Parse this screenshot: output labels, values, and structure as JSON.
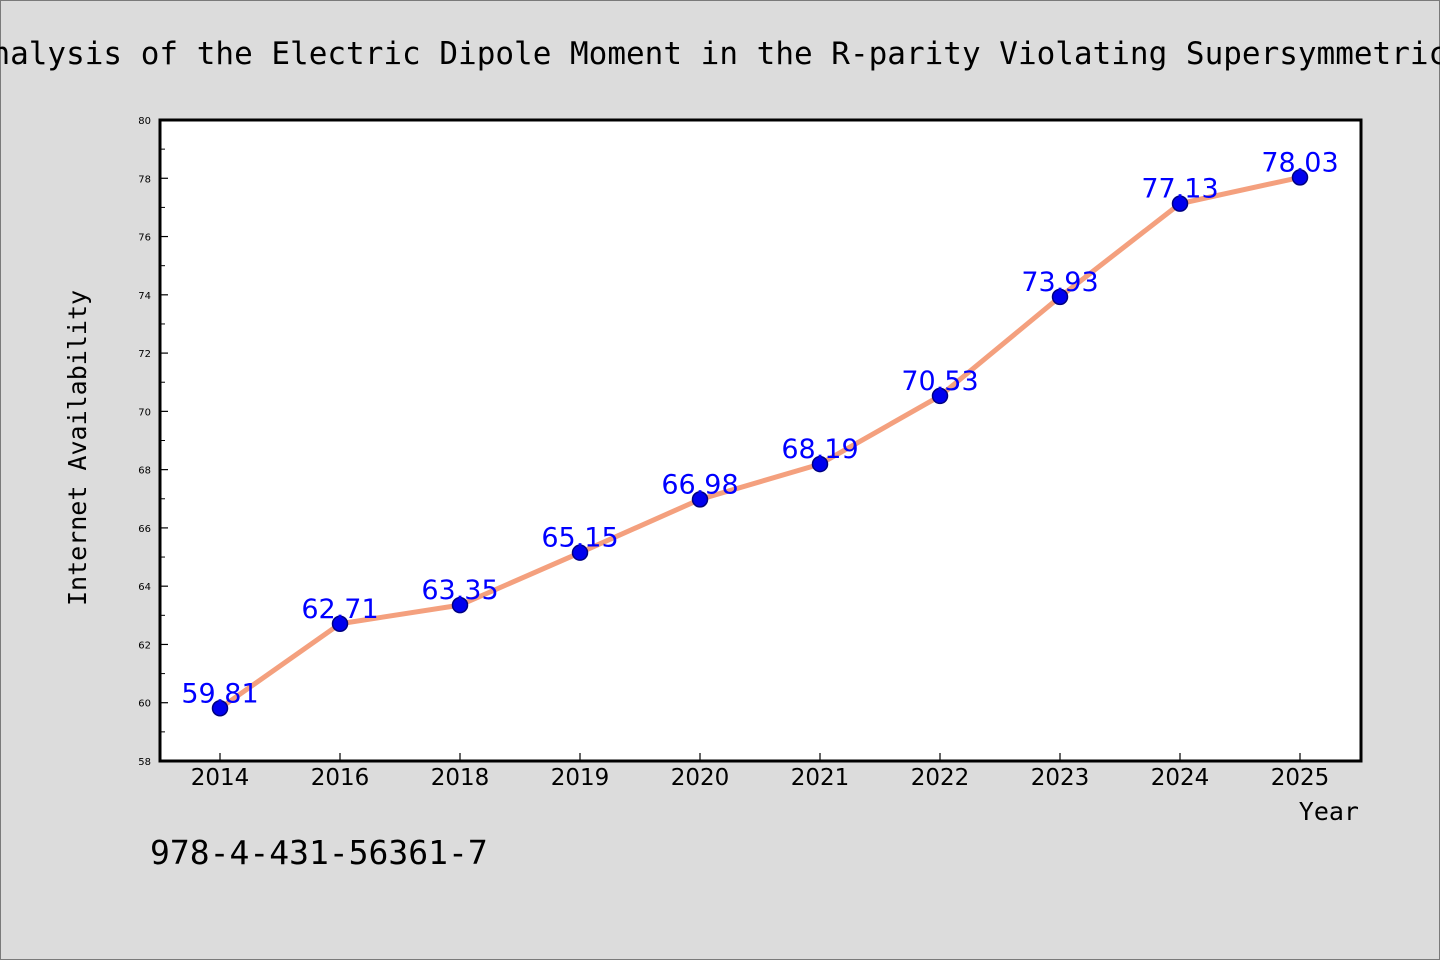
{
  "chart_data": {
    "type": "line",
    "title": "Analysis of the Electric Dipole Moment in the R-parity Violating Supersymmetric",
    "xlabel": "Year",
    "ylabel": "Internet Availability",
    "categories": [
      "2014",
      "2016",
      "2018",
      "2019",
      "2020",
      "2021",
      "2022",
      "2023",
      "2024",
      "2025"
    ],
    "series": [
      {
        "values": [
          59.81,
          62.71,
          63.35,
          65.15,
          66.98,
          68.19,
          70.53,
          73.93,
          77.13,
          78.03
        ],
        "data_labels": [
          "59.81",
          "62.71",
          "63.35",
          "65.15",
          "66.98",
          "68.19",
          "70.53",
          "73.93",
          "77.13",
          "78.03"
        ]
      }
    ],
    "ylim": [
      58,
      80
    ],
    "yticks": [
      58,
      60,
      62,
      64,
      66,
      68,
      70,
      72,
      74,
      76,
      78,
      80
    ],
    "ytick_labels": [
      "58",
      "60",
      "62",
      "64",
      "66",
      "68",
      "70",
      "72",
      "74",
      "76",
      "78",
      "80"
    ],
    "grid": false,
    "legend": "none",
    "colors": {
      "line": "#f4a07e",
      "marker_fill": "#0000ee",
      "marker_edge": "#000080",
      "data_label": "#0000ff",
      "background": "#dcdcdc",
      "plot_background": "#ffffff"
    }
  },
  "footer": {
    "isbn": "978-4-431-56361-7"
  }
}
